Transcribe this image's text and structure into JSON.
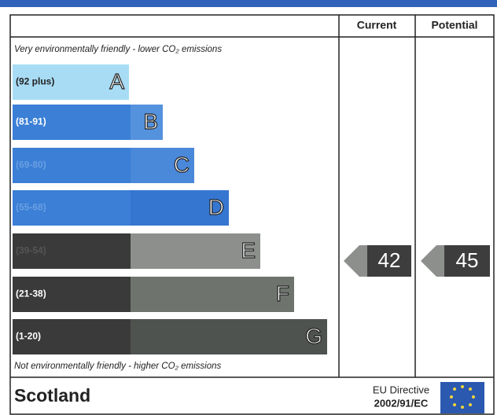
{
  "header": {
    "current": "Current",
    "potential": "Potential"
  },
  "top_note": "Very environmentally friendly - lower CO₂ emissions",
  "bands": [
    {
      "range": "(92 plus)",
      "letter": "A",
      "color": "#a8dcf5",
      "letter_color": "#a8dcf5"
    },
    {
      "range": "(81-91)",
      "letter": "B",
      "color": "#3b7fd6",
      "letter_color": "#5592de"
    },
    {
      "range": "(69-80)",
      "letter": "C",
      "color": "#3b7fd6",
      "letter_color": "#4a88da"
    },
    {
      "range": "(55-68)",
      "letter": "D",
      "color": "#3b7fd6",
      "letter_color": "#3576d0"
    },
    {
      "range": "(39-54)",
      "letter": "E",
      "color": "#3a3a3a",
      "letter_color": "#8c8f8c"
    },
    {
      "range": "(21-38)",
      "letter": "F",
      "color": "#3a3a3a",
      "letter_color": "#6e736e"
    },
    {
      "range": "(1-20)",
      "letter": "G",
      "color": "#3a3a3a",
      "letter_color": "#4f534f"
    }
  ],
  "bottom_note": "Not environmentally friendly - higher CO₂ emissions",
  "ratings": {
    "current": 42,
    "potential": 45
  },
  "footer": {
    "region": "Scotland",
    "directive": "EU Directive",
    "directive_number": "2002/91/EC"
  }
}
